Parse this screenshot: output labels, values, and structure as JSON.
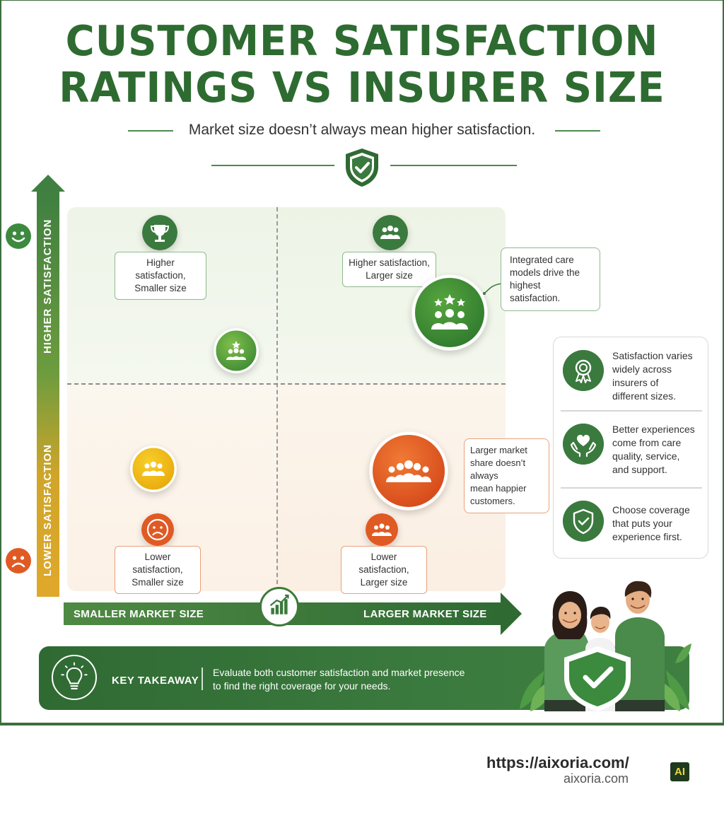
{
  "title": {
    "line1": "CUSTOMER SATISFACTION",
    "line2": "RATINGS VS INSURER SIZE"
  },
  "subtitle": "Market size doesn’t always mean higher satisfaction.",
  "axes": {
    "y_high": "HIGHER SATISFACTION",
    "y_low": "LOWER SATISFACTION",
    "x_small": "SMALLER MARKET SIZE",
    "x_large": "LARGER MARKET SIZE"
  },
  "quadrants": {
    "top_left": [
      "Higher satisfaction,",
      "Smaller size"
    ],
    "top_right": [
      "Higher satisfaction,",
      "Larger size"
    ],
    "bottom_left": [
      "Lower satisfaction,",
      "Smaller size"
    ],
    "bottom_right": [
      "Lower satisfaction,",
      "Larger size"
    ]
  },
  "notes": {
    "integrated": [
      "Integrated care",
      "models drive the",
      "highest satisfaction."
    ],
    "larger_market": [
      "Larger market",
      "share doesn’t always",
      "mean happier",
      "customers."
    ]
  },
  "panel": [
    {
      "icon": "award-ribbon-icon",
      "lines": [
        "Satisfaction varies",
        "widely across",
        "insurers of",
        "different sizes."
      ]
    },
    {
      "icon": "heart-hands-icon",
      "lines": [
        "Better experiences",
        "come from care",
        "quality, service,",
        "and support."
      ]
    },
    {
      "icon": "shield-check-icon",
      "lines": [
        "Choose coverage",
        "that puts your",
        "experience first."
      ]
    }
  ],
  "takeaway": {
    "title": "KEY TAKEAWAY",
    "lines": [
      "Evaluate both customer satisfaction and market presence",
      "to find the right coverage for your needs."
    ]
  },
  "footer": {
    "url": "https://aixoria.com/",
    "domain": "aixoria.com",
    "logo": "AI"
  },
  "colors": {
    "primary_green": "#2e6b31",
    "orange": "#e05a24",
    "yellow": "#f0b400"
  }
}
